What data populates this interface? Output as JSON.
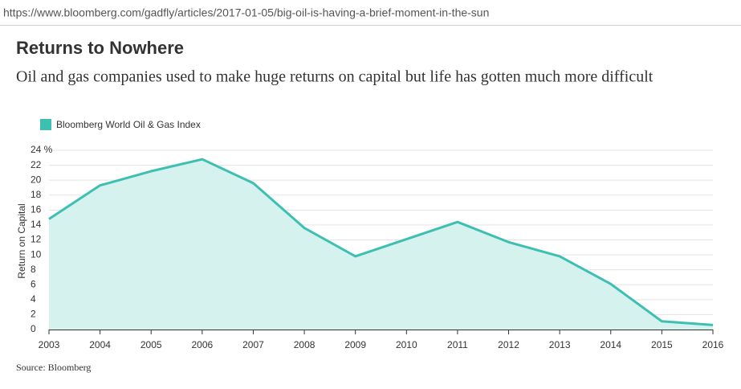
{
  "url": "https://www.bloomberg.com/gadfly/articles/2017-01-05/big-oil-is-having-a-brief-moment-in-the-sun",
  "source": "Source: Bloomberg",
  "chart_data": {
    "type": "area",
    "title": "Returns to Nowhere",
    "subtitle": "Oil and gas companies used to make huge returns on capital but life has gotten much more difficult",
    "y_label": "Return on Capital",
    "x": [
      2003,
      2004,
      2005,
      2006,
      2007,
      2008,
      2009,
      2010,
      2011,
      2012,
      2013,
      2014,
      2015,
      2016
    ],
    "series": [
      {
        "name": "Bloomberg World Oil & Gas Index",
        "color": "#3dbfb2",
        "fill": "#d5f2ef",
        "values": [
          14.8,
          19.3,
          21.2,
          22.8,
          19.6,
          13.6,
          9.8,
          12.1,
          14.4,
          11.7,
          9.8,
          6.1,
          1.1,
          0.6
        ]
      }
    ],
    "xlim": [
      2003,
      2016
    ],
    "xticks": [
      2003,
      2004,
      2005,
      2006,
      2007,
      2008,
      2009,
      2010,
      2011,
      2012,
      2013,
      2014,
      2015,
      2016
    ],
    "ylim": [
      0,
      24
    ],
    "yticks": [
      0,
      2,
      4,
      6,
      8,
      10,
      12,
      14,
      16,
      18,
      20,
      22,
      {
        "value": 24,
        "label": "24 %"
      }
    ],
    "grid": true,
    "legend": "top-left"
  }
}
